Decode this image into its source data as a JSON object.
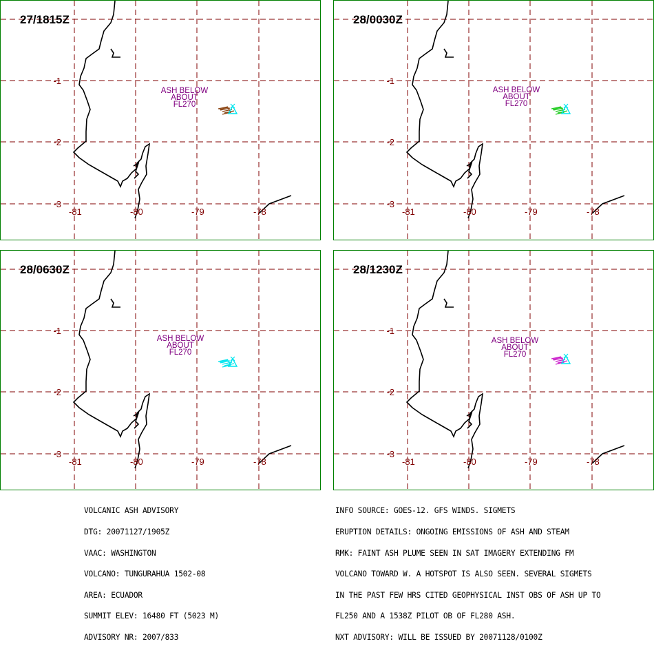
{
  "panels": [
    {
      "time": "27/1815Z",
      "ash_label": [
        "ASH BELOW",
        "ABOUT",
        "FL270"
      ],
      "plume_color": "#8b4513"
    },
    {
      "time": "28/0030Z",
      "ash_label": [
        "ASH BELOW",
        "ABOUT",
        "FL270"
      ],
      "plume_color": "#22cc22"
    },
    {
      "time": "28/0630Z",
      "ash_label": [
        "ASH BELOW",
        "ABOUT",
        "FL270"
      ],
      "plume_color": "#00e5ee"
    },
    {
      "time": "28/1230Z",
      "ash_label": [
        "ASH BELOW",
        "ABOUT",
        "FL270"
      ],
      "plume_color": "#cc22cc"
    }
  ],
  "axis": {
    "lat_labels": [
      "-1",
      "-2",
      "-3"
    ],
    "lon_labels": [
      "-81",
      "-80",
      "-79",
      "-78"
    ]
  },
  "colors": {
    "border": "#008000",
    "grid": "#800000",
    "label": "#800080",
    "volcano": "#00e5ee"
  },
  "advisory_left": [
    "VOLCANIC ASH ADVISORY",
    "DTG: 20071127/1905Z",
    "VAAC: WASHINGTON",
    "VOLCANO: TUNGURAHUA 1502-08",
    "AREA: ECUADOR",
    "SUMMIT ELEV: 16480 FT (5023 M)",
    "ADVISORY NR: 2007/833"
  ],
  "advisory_right": [
    "INFO SOURCE: GOES-12. GFS WINDS. SIGMETS",
    "ERUPTION DETAILS: ONGOING EMISSIONS OF ASH AND STEAM",
    "RMK: FAINT ASH PLUME SEEN IN SAT IMAGERY EXTENDING FM",
    "VOLCANO TOWARD W. A HOTSPOT IS ALSO SEEN. SEVERAL SIGMETS",
    "IN THE PAST FEW HRS CITED GEOPHYSICAL INST OBS OF ASH UP TO",
    "FL250 AND A 1538Z PILOT OB OF FL280 ASH.",
    "NXT ADVISORY: WILL BE ISSUED BY 20071128/0100Z"
  ]
}
